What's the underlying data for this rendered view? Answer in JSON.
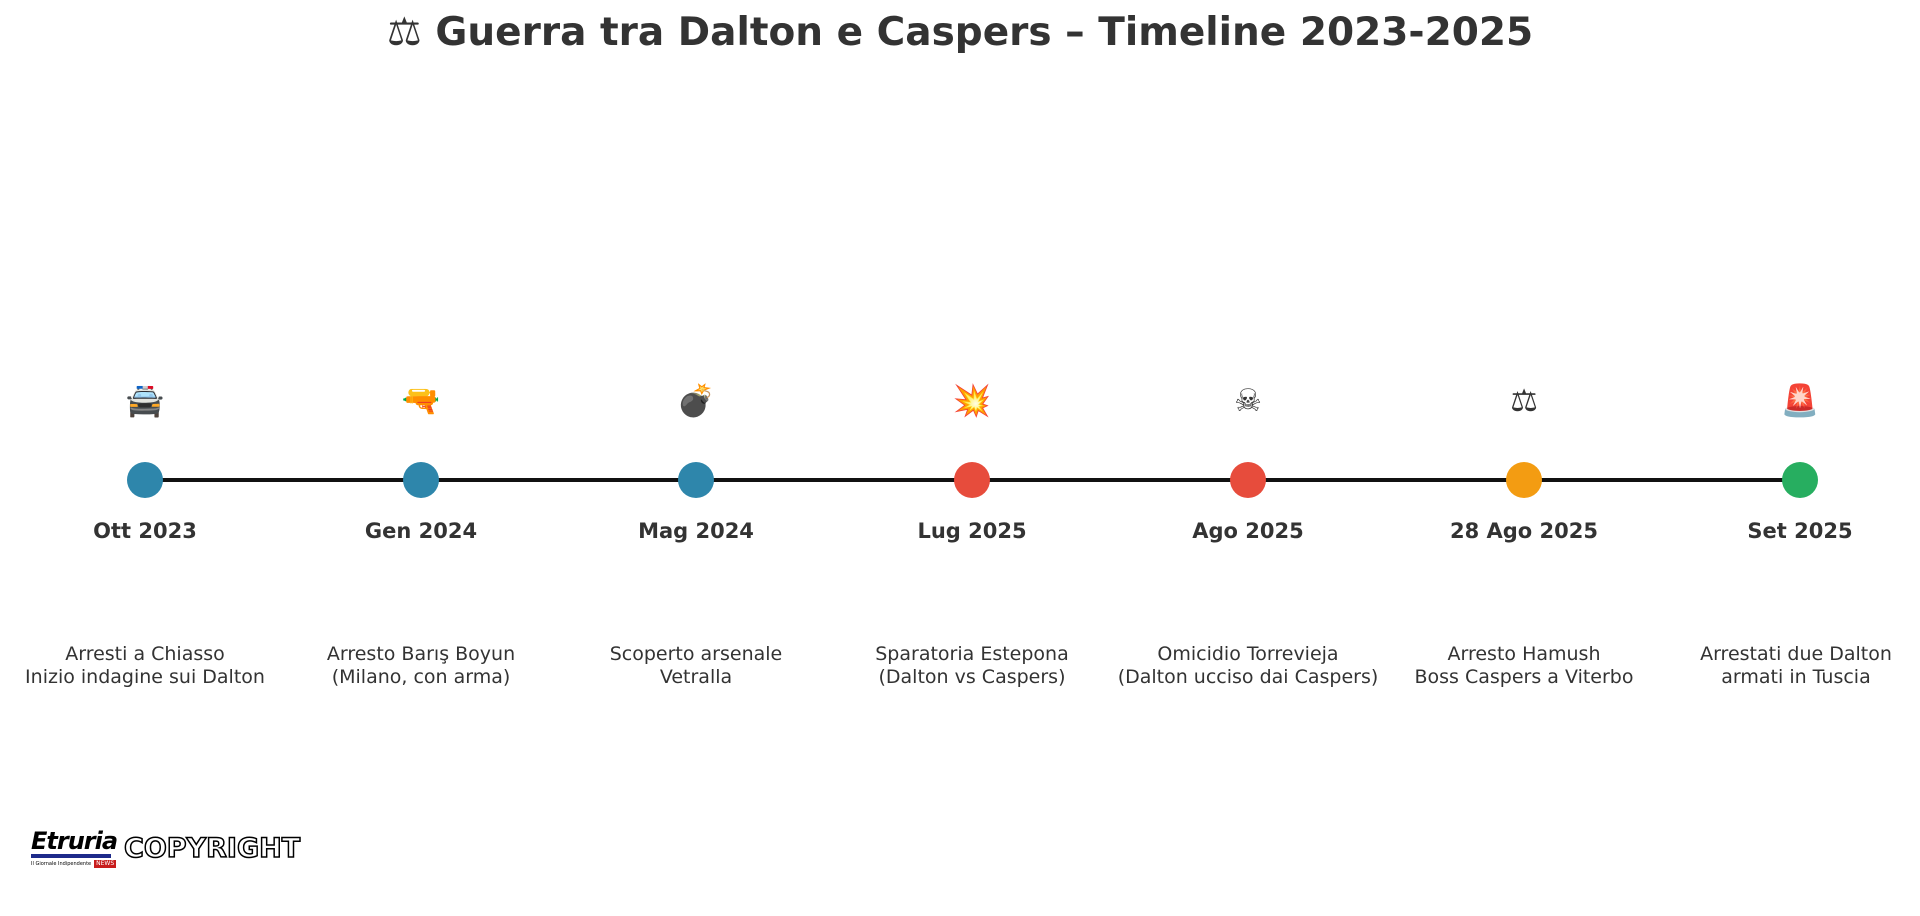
{
  "title": "⚖ Guerra tra Dalton e Caspers – Timeline 2023-2025",
  "colors": {
    "line": "#111111",
    "text": "#333333",
    "blue": "#2e86ab",
    "red": "#e74c3c",
    "orange": "#f39c12",
    "green": "#27ae60"
  },
  "events": [
    {
      "icon": "🚔",
      "icon_name": "police-car-icon",
      "date": "Ott 2023",
      "desc": [
        "Arresti a Chiasso",
        "Inizio indagine sui Dalton"
      ],
      "color": "#2e86ab"
    },
    {
      "icon": "🔫",
      "icon_name": "pistol-icon",
      "date": "Gen 2024",
      "desc": [
        "Arresto Barış Boyun",
        "(Milano, con arma)"
      ],
      "color": "#2e86ab"
    },
    {
      "icon": "💣",
      "icon_name": "bomb-icon",
      "date": "Mag 2024",
      "desc": [
        "Scoperto arsenale",
        "Vetralla"
      ],
      "color": "#2e86ab"
    },
    {
      "icon": "💥",
      "icon_name": "explosion-icon",
      "date": "Lug 2025",
      "desc": [
        "Sparatoria Estepona",
        "(Dalton vs Caspers)"
      ],
      "color": "#e74c3c"
    },
    {
      "icon": "☠",
      "icon_name": "skull-icon",
      "date": "Ago 2025",
      "desc": [
        "Omicidio Torrevieja",
        "(Dalton ucciso dai Caspers)"
      ],
      "color": "#e74c3c"
    },
    {
      "icon": "⚖",
      "icon_name": "scales-icon",
      "date": "28 Ago 2025",
      "desc": [
        "Arresto Hamush",
        "Boss Caspers a Viterbo"
      ],
      "color": "#f39c12"
    },
    {
      "icon": "🚨",
      "icon_name": "siren-icon",
      "date": "Set 2025",
      "desc": [
        "Arrestati due Dalton",
        "armati in Tuscia"
      ],
      "color": "#27ae60"
    }
  ],
  "logo": {
    "name": "Etruria",
    "tagline": "Il Giornale Indipendente",
    "badge": "NEWS"
  },
  "watermark": "COPYRIGHT"
}
